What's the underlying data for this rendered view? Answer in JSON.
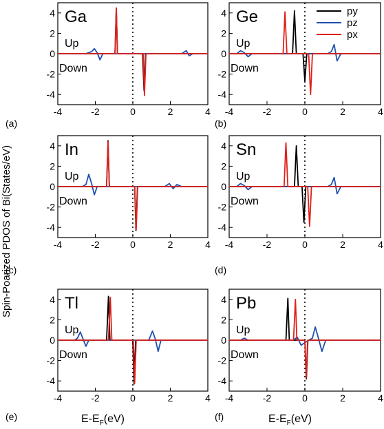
{
  "figure": {
    "ylabel": "Spin-Poarized PDOS of Bi(States/eV)",
    "xlabel_main": "E-E",
    "xlabel_sub": "F",
    "xlabel_unit": "(eV)"
  },
  "legend": [
    {
      "name": "py",
      "color": "#000000"
    },
    {
      "name": "pz",
      "color": "#1f4fb0"
    },
    {
      "name": "px",
      "color": "#e0201a"
    }
  ],
  "chart_data": [
    {
      "panel": "(a)",
      "label": "Ga",
      "type": "line",
      "xlim": [
        -4,
        4
      ],
      "ylim": [
        -5,
        5
      ],
      "xticks": [
        -4,
        -2,
        0,
        2,
        4
      ],
      "yticks": [
        -4,
        -2,
        0,
        2,
        4
      ],
      "up_label": "Up",
      "down_label": "Down",
      "series": [
        {
          "name": "py",
          "color": "#000000",
          "x": [
            -4,
            -0.95,
            -0.88,
            -0.82,
            -0.75,
            0.4,
            0.52,
            0.6,
            0.68,
            4
          ],
          "y": [
            0,
            0,
            4.4,
            0,
            0,
            0,
            0,
            -3.6,
            0,
            0
          ]
        },
        {
          "name": "pz",
          "color": "#1f4fb0",
          "x": [
            -4,
            -2.5,
            -2.2,
            -2.05,
            -1.9,
            -1.75,
            -1.6,
            -0.2,
            2.6,
            2.85,
            3.0,
            3.2,
            4
          ],
          "y": [
            0,
            0,
            0.2,
            0.5,
            0.1,
            -0.6,
            0,
            0,
            0,
            0.3,
            -0.2,
            0,
            0
          ]
        },
        {
          "name": "px",
          "color": "#e0201a",
          "x": [
            -4,
            -0.95,
            -0.88,
            -0.82,
            -0.75,
            0.45,
            0.55,
            0.62,
            0.7,
            4
          ],
          "y": [
            0,
            0,
            4.5,
            0,
            0,
            0,
            0,
            -4.1,
            0,
            0
          ]
        }
      ]
    },
    {
      "panel": "(b)",
      "label": "Ge",
      "type": "line",
      "xlim": [
        -4,
        4
      ],
      "ylim": [
        -5,
        5
      ],
      "xticks": [
        -4,
        -2,
        0,
        2,
        4
      ],
      "yticks": [
        -4,
        -2,
        0,
        2,
        4
      ],
      "up_label": "Up",
      "down_label": "Down",
      "series": [
        {
          "name": "py",
          "color": "#000000",
          "x": [
            -4,
            -0.65,
            -0.55,
            -0.45,
            -0.35,
            -0.1,
            0.0,
            0.1,
            4
          ],
          "y": [
            0,
            0,
            4.2,
            0,
            0,
            0,
            -2.7,
            0,
            0
          ]
        },
        {
          "name": "pz",
          "color": "#1f4fb0",
          "x": [
            -4,
            -3.6,
            -3.4,
            -3.2,
            -3.0,
            -2.8,
            1.2,
            1.4,
            1.55,
            1.7,
            1.9,
            4
          ],
          "y": [
            0,
            0,
            0.3,
            0.1,
            -0.3,
            0,
            0,
            0.2,
            0.9,
            -0.7,
            0,
            0
          ]
        },
        {
          "name": "px",
          "color": "#e0201a",
          "x": [
            -4,
            -1.15,
            -1.05,
            -0.95,
            -0.85,
            0.1,
            0.2,
            0.3,
            0.4,
            4
          ],
          "y": [
            0,
            0,
            4.1,
            0,
            0,
            0,
            0,
            -4.0,
            0,
            0
          ]
        }
      ]
    },
    {
      "panel": "(c)",
      "label": "In",
      "type": "line",
      "xlim": [
        -4,
        4
      ],
      "ylim": [
        -5,
        5
      ],
      "xticks": [
        -4,
        -2,
        0,
        2,
        4
      ],
      "yticks": [
        -4,
        -2,
        0,
        2,
        4
      ],
      "up_label": "Up",
      "down_label": "Down",
      "series": [
        {
          "name": "py",
          "color": "#000000",
          "x": [
            -4,
            -1.4,
            -1.32,
            -1.25,
            -1.18,
            0.0,
            0.1,
            0.17,
            0.25,
            4
          ],
          "y": [
            0,
            0,
            4.5,
            0,
            0,
            0,
            0,
            -4.3,
            0,
            0
          ]
        },
        {
          "name": "pz",
          "color": "#1f4fb0",
          "x": [
            -4,
            -2.7,
            -2.5,
            -2.35,
            -2.2,
            -2.05,
            -1.9,
            1.7,
            1.95,
            2.15,
            2.35,
            2.6,
            4
          ],
          "y": [
            0,
            0,
            0.2,
            1.2,
            0.3,
            -0.8,
            0,
            0,
            0.3,
            -0.2,
            0.2,
            0,
            0
          ]
        },
        {
          "name": "px",
          "color": "#e0201a",
          "x": [
            -4,
            -1.4,
            -1.32,
            -1.25,
            -1.18,
            0.0,
            0.1,
            0.18,
            0.26,
            4
          ],
          "y": [
            0,
            0,
            4.4,
            0,
            0,
            0,
            0,
            -4.2,
            0,
            0
          ]
        }
      ]
    },
    {
      "panel": "(d)",
      "label": "Sn",
      "type": "line",
      "xlim": [
        -4,
        4
      ],
      "ylim": [
        -5,
        5
      ],
      "xticks": [
        -4,
        -2,
        0,
        2,
        4
      ],
      "yticks": [
        -4,
        -2,
        0,
        2,
        4
      ],
      "up_label": "Up",
      "down_label": "Down",
      "series": [
        {
          "name": "py",
          "color": "#000000",
          "x": [
            -4,
            -0.55,
            -0.45,
            -0.35,
            -0.25,
            -0.15,
            -0.05,
            0.05,
            4
          ],
          "y": [
            0,
            0,
            4.0,
            0,
            0,
            0,
            -3.5,
            0,
            0
          ]
        },
        {
          "name": "pz",
          "color": "#1f4fb0",
          "x": [
            -4,
            -3.6,
            -3.4,
            -3.2,
            -3.0,
            -2.8,
            1.2,
            1.4,
            1.55,
            1.7,
            1.9,
            4
          ],
          "y": [
            0,
            0,
            0.3,
            0.1,
            -0.3,
            0,
            0,
            0.2,
            0.9,
            -0.7,
            0,
            0
          ]
        },
        {
          "name": "px",
          "color": "#e0201a",
          "x": [
            -4,
            -1.1,
            -1.0,
            -0.9,
            -0.8,
            0.05,
            0.15,
            0.25,
            0.35,
            4
          ],
          "y": [
            0,
            0,
            4.3,
            0,
            0,
            0,
            0,
            -3.9,
            0,
            0
          ]
        }
      ]
    },
    {
      "panel": "(e)",
      "label": "Tl",
      "type": "line",
      "xlim": [
        -4,
        4
      ],
      "ylim": [
        -5,
        5
      ],
      "xticks": [
        -4,
        -2,
        0,
        2,
        4
      ],
      "yticks": [
        -4,
        -2,
        0,
        2,
        4
      ],
      "up_label": "Up",
      "down_label": "Down",
      "series": [
        {
          "name": "py",
          "color": "#000000",
          "x": [
            -4,
            -1.4,
            -1.3,
            -1.22,
            -1.15,
            -0.1,
            0.0,
            0.07,
            0.15,
            4
          ],
          "y": [
            0,
            0,
            4.3,
            0,
            0,
            0,
            0,
            -4.3,
            0,
            0
          ]
        },
        {
          "name": "pz",
          "color": "#1f4fb0",
          "x": [
            -4,
            -3.1,
            -2.95,
            -2.8,
            -2.65,
            -2.5,
            -2.35,
            0.85,
            1.05,
            1.2,
            1.35,
            1.5,
            4
          ],
          "y": [
            0,
            0,
            0.2,
            0.8,
            0.1,
            -0.6,
            0,
            0,
            0.9,
            0.1,
            -1.1,
            0,
            0
          ]
        },
        {
          "name": "px",
          "color": "#e0201a",
          "x": [
            -4,
            -1.3,
            -1.2,
            -1.12,
            -1.05,
            -0.05,
            0.03,
            0.1,
            0.18,
            4
          ],
          "y": [
            0,
            0,
            4.2,
            0,
            0,
            0,
            0,
            -4.2,
            0,
            0
          ]
        }
      ]
    },
    {
      "panel": "(f)",
      "label": "Pb",
      "type": "line",
      "xlim": [
        -4,
        4
      ],
      "ylim": [
        -5,
        5
      ],
      "xticks": [
        -4,
        -2,
        0,
        2,
        4
      ],
      "yticks": [
        -4,
        -2,
        0,
        2,
        4
      ],
      "up_label": "Up",
      "down_label": "Down",
      "series": [
        {
          "name": "py",
          "color": "#000000",
          "x": [
            -4,
            -1.0,
            -0.9,
            -0.82,
            -0.74,
            -0.1,
            0.0,
            0.08,
            0.16,
            4
          ],
          "y": [
            0,
            0,
            4.1,
            0,
            0,
            0,
            0,
            -3.8,
            0,
            0
          ]
        },
        {
          "name": "pz",
          "color": "#1f4fb0",
          "x": [
            -4,
            -3.4,
            -3.2,
            -3.0,
            -0.6,
            -0.4,
            -0.2,
            0.2,
            0.4,
            0.55,
            0.7,
            0.9,
            1.1,
            4
          ],
          "y": [
            0,
            0,
            0.2,
            0,
            0,
            0.3,
            -0.5,
            0,
            0.2,
            1.3,
            0.3,
            -1.1,
            0,
            0
          ]
        },
        {
          "name": "px",
          "color": "#e0201a",
          "x": [
            -4,
            -0.6,
            -0.5,
            -0.42,
            -0.34,
            -0.1,
            0.0,
            0.07,
            0.15,
            4
          ],
          "y": [
            0,
            0,
            4.0,
            0,
            0,
            0,
            0,
            -3.7,
            0,
            0
          ]
        }
      ]
    }
  ]
}
